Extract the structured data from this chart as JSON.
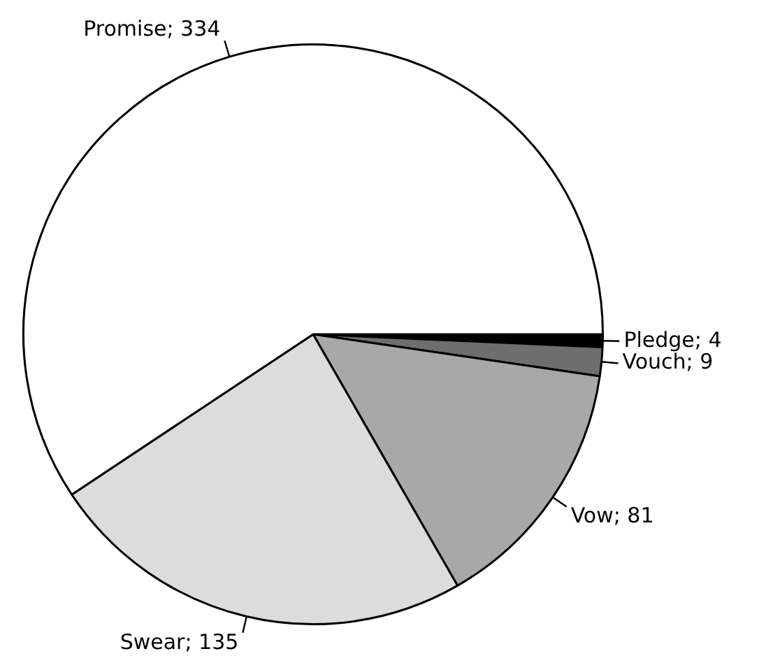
{
  "chart_data": {
    "type": "pie",
    "categories": [
      "Pledge",
      "Vouch",
      "Vow",
      "Swear",
      "Promise"
    ],
    "values": [
      4,
      9,
      81,
      135,
      334
    ],
    "colors": [
      "#000000",
      "#6e6e6e",
      "#a8a8a8",
      "#dcdcdc",
      "#ffffff"
    ],
    "value_labels": [
      "; 4",
      "; 9",
      "; 81",
      "; 135",
      "; 334"
    ],
    "legend": false
  }
}
